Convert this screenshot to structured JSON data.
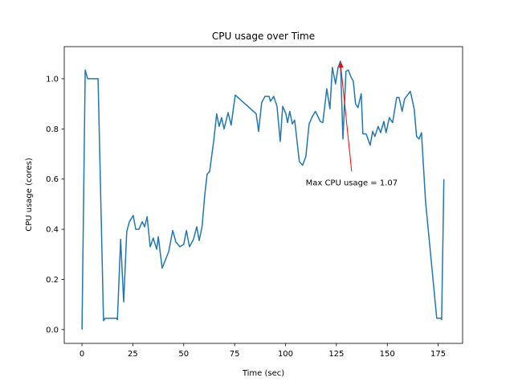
{
  "chart_data": {
    "type": "line",
    "title": "CPU usage over Time",
    "xlabel": "Time (sec)",
    "ylabel": "CPU usage (cores)",
    "xlim": [
      -8.7,
      187
    ],
    "ylim": [
      -0.055,
      1.128
    ],
    "xticks": [
      0,
      25,
      50,
      75,
      100,
      125,
      150,
      175
    ],
    "xtick_labels": [
      "0",
      "25",
      "50",
      "75",
      "100",
      "125",
      "150",
      "175"
    ],
    "yticks": [
      0.0,
      0.2,
      0.4,
      0.6,
      0.8,
      1.0
    ],
    "ytick_labels": [
      "0.0",
      "0.2",
      "0.4",
      "0.6",
      "0.8",
      "1.0"
    ],
    "grid": false,
    "line_color": "#1f77b4",
    "series": [
      {
        "name": "CPU usage",
        "x": [
          0,
          1.6,
          2.8,
          4.3,
          7.9,
          10.6,
          11.4,
          15,
          17,
          17.4,
          19,
          20.5,
          22,
          23.3,
          25.2,
          26.4,
          28,
          29.6,
          30.8,
          32,
          33.5,
          35,
          36.7,
          37.5,
          39.4,
          42.6,
          44.6,
          46.1,
          48.1,
          50,
          51.3,
          52.8,
          54.8,
          56.4,
          57.6,
          59,
          60.3,
          61.5,
          62.7,
          64.7,
          66.2,
          67.4,
          68.6,
          69.8,
          71.8,
          73.3,
          75.3,
          85.6,
          86.8,
          88.3,
          89.9,
          91.9,
          92.6,
          94.2,
          95.8,
          97.4,
          98.6,
          100.2,
          101,
          102.1,
          103.3,
          104.5,
          106.8,
          108.4,
          110,
          111.6,
          113.2,
          114.7,
          117.1,
          118.3,
          119.5,
          120.3,
          121.8,
          123,
          124.6,
          125.8,
          127,
          128.2,
          129.7,
          130.9,
          132,
          133.3,
          134.4,
          135.6,
          137.2,
          138,
          139.6,
          141.6,
          142.8,
          143.9,
          145.5,
          146.7,
          148.3,
          149.4,
          151,
          152.6,
          154.6,
          155.8,
          157.3,
          158.5,
          161.3,
          163.2,
          164.4,
          165.6,
          166.8,
          168.8,
          174.3,
          176.3,
          176.7,
          177.8
        ],
        "y": [
          0,
          1.035,
          1.0,
          1.0,
          1.0,
          0.035,
          0.045,
          0.045,
          0.045,
          0.04,
          0.36,
          0.11,
          0.39,
          0.43,
          0.455,
          0.4,
          0.4,
          0.43,
          0.41,
          0.45,
          0.33,
          0.365,
          0.32,
          0.37,
          0.245,
          0.31,
          0.395,
          0.35,
          0.33,
          0.34,
          0.395,
          0.33,
          0.36,
          0.41,
          0.355,
          0.41,
          0.535,
          0.62,
          0.63,
          0.75,
          0.86,
          0.81,
          0.845,
          0.8,
          0.865,
          0.815,
          0.935,
          0.86,
          0.79,
          0.905,
          0.93,
          0.93,
          0.91,
          0.93,
          0.89,
          0.75,
          0.89,
          0.86,
          0.825,
          0.87,
          0.82,
          0.835,
          0.67,
          0.655,
          0.69,
          0.82,
          0.85,
          0.87,
          0.83,
          0.825,
          0.905,
          0.96,
          0.88,
          1.045,
          0.98,
          1.045,
          1.07,
          0.76,
          1.03,
          1.035,
          1.01,
          0.99,
          0.9,
          0.885,
          0.94,
          0.78,
          0.78,
          0.735,
          0.79,
          0.77,
          0.81,
          0.785,
          0.83,
          0.785,
          0.845,
          0.825,
          0.925,
          0.925,
          0.87,
          0.92,
          0.95,
          0.88,
          0.77,
          0.76,
          0.785,
          0.51,
          0.045,
          0.045,
          0.04,
          0.6
        ]
      }
    ],
    "annotation": {
      "text": "Max CPU usage = 1.07",
      "xy": [
        127,
        1.07
      ],
      "xytext": [
        132.5,
        0.63
      ],
      "color": "#ff0000"
    }
  }
}
